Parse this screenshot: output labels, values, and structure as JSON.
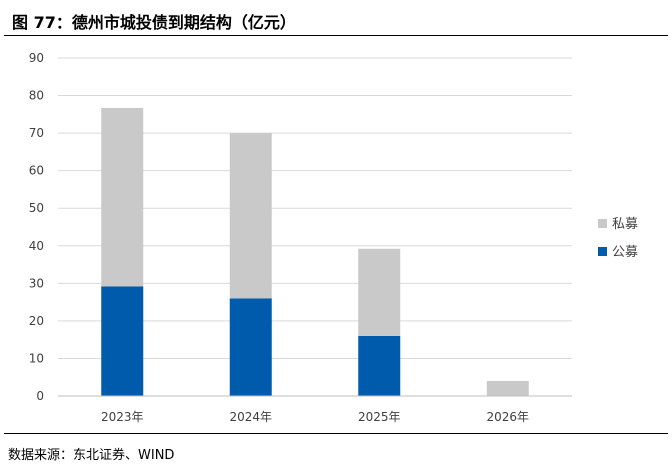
{
  "figure": {
    "title": "图 77：德州市城投债到期结构（亿元）",
    "source": "数据来源：东北证券、WIND"
  },
  "colors": {
    "private": "#c9c9c9",
    "public": "#005bac",
    "grid": "#d9d9d9",
    "axis": "#bfbfbf"
  },
  "chart_data": {
    "type": "bar",
    "stacked": true,
    "categories": [
      "2023年",
      "2024年",
      "2025年",
      "2026年"
    ],
    "series": [
      {
        "name": "公募",
        "values": [
          29.2,
          26.0,
          16.0,
          0
        ]
      },
      {
        "name": "私募",
        "values": [
          47.5,
          44.0,
          23.2,
          4.0
        ]
      }
    ],
    "title": "德州市城投债到期结构（亿元）",
    "xlabel": "",
    "ylabel": "",
    "ylim": [
      0,
      90
    ],
    "yticks": [
      0,
      10,
      20,
      30,
      40,
      50,
      60,
      70,
      80,
      90
    ],
    "grid": true,
    "legend_position": "right"
  }
}
